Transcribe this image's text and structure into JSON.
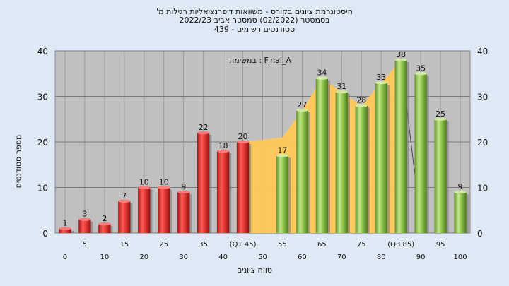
{
  "chart_data": {
    "type": "bar",
    "title_lines": [
      "'היסטוגרמת ציונים בקורס - משוואות דיפרנציאליות רגילות מ",
      "בסמסטר  (02/2022)  סמסטר אביב 2022/23",
      "סטודנטים רשומים - 439"
    ],
    "ylabel": "מספר סטודנטים",
    "xlabel": "טווח ציונים",
    "annotation": "במשימה : Final_A",
    "ylim": [
      0,
      40
    ],
    "yticks": [
      0,
      10,
      20,
      30,
      40
    ],
    "xtick_labels": [
      "0",
      "5",
      "10",
      "15",
      "20",
      "25",
      "30",
      "35",
      "40",
      "(Q1 45)",
      "50",
      "55",
      "60",
      "65",
      "70",
      "75",
      "80",
      "(Q3 85)",
      "90",
      "95",
      "100"
    ],
    "bars": [
      {
        "x": 0,
        "value": 1,
        "color": "red"
      },
      {
        "x": 5,
        "value": 3,
        "color": "red"
      },
      {
        "x": 10,
        "value": 2,
        "color": "red"
      },
      {
        "x": 15,
        "value": 7,
        "color": "red"
      },
      {
        "x": 20,
        "value": 10,
        "color": "red"
      },
      {
        "x": 25,
        "value": 10,
        "color": "red"
      },
      {
        "x": 30,
        "value": 9,
        "color": "red"
      },
      {
        "x": 35,
        "value": 22,
        "color": "red"
      },
      {
        "x": 40,
        "value": 18,
        "color": "red"
      },
      {
        "x": 45,
        "value": 20,
        "color": "red"
      },
      {
        "x": 55,
        "value": 17,
        "color": "green"
      },
      {
        "x": 60,
        "value": 27,
        "color": "green"
      },
      {
        "x": 65,
        "value": 34,
        "color": "green"
      },
      {
        "x": 70,
        "value": 31,
        "color": "green"
      },
      {
        "x": 75,
        "value": 28,
        "color": "green"
      },
      {
        "x": 80,
        "value": 33,
        "color": "green"
      },
      {
        "x": 85,
        "value": 38,
        "color": "green"
      },
      {
        "x": 90,
        "value": 35,
        "color": "green"
      },
      {
        "x": 95,
        "value": 25,
        "color": "green"
      },
      {
        "x": 100,
        "value": 9,
        "color": "green"
      }
    ],
    "area_band": [
      [
        45,
        20
      ],
      [
        50,
        20.5
      ],
      [
        55,
        21
      ],
      [
        60,
        27
      ],
      [
        65,
        34
      ],
      [
        70,
        31
      ],
      [
        75,
        28
      ],
      [
        80,
        33
      ],
      [
        85,
        38
      ]
    ],
    "grid": true,
    "colors": {
      "red": "#e53935",
      "green": "#8bc34a",
      "area": "#ffc857",
      "plot_bg": "#c0c0c0",
      "page_bg": "#dfe9f5"
    }
  }
}
